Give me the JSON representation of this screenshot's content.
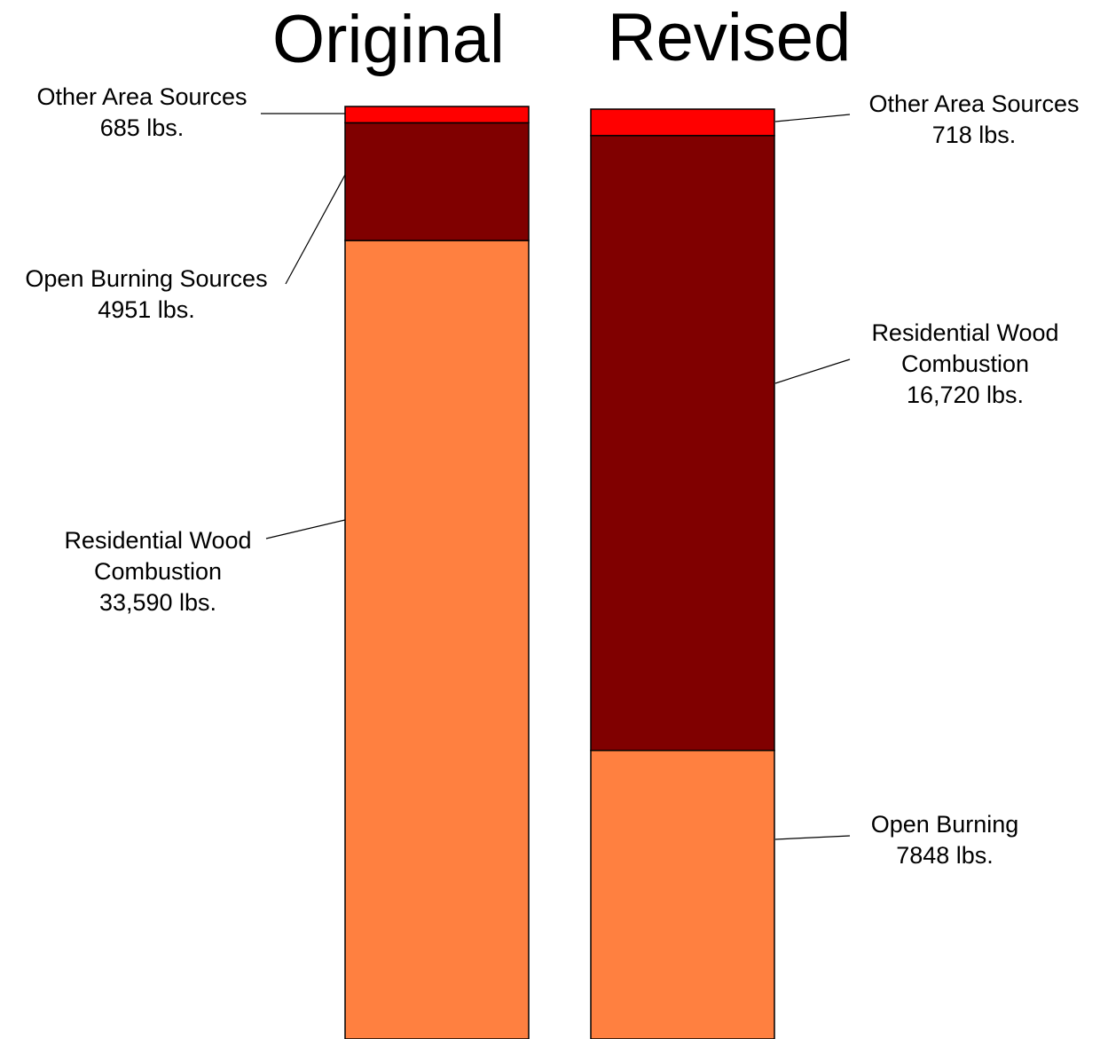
{
  "chart_data": {
    "type": "bar",
    "stacked": true,
    "categories": [
      "Original",
      "Revised"
    ],
    "titles": [
      "Original",
      "Revised"
    ],
    "stacks": [
      {
        "category": "Original",
        "segments": [
          {
            "id": "residential",
            "value": 33590,
            "color": "#FF8040",
            "label_lines": [
              "Residential Wood",
              "Combustion",
              "33,590 lbs."
            ]
          },
          {
            "id": "open",
            "value": 4951,
            "color": "#800000",
            "label_lines": [
              "Open Burning Sources",
              "4951 lbs."
            ]
          },
          {
            "id": "other",
            "value": 685,
            "color": "#FF0000",
            "label_lines": [
              "Other Area Sources",
              "685 lbs."
            ]
          }
        ]
      },
      {
        "category": "Revised",
        "segments": [
          {
            "id": "open",
            "value": 7848,
            "color": "#FF8040",
            "label_lines": [
              "Open Burning",
              "7848 lbs."
            ]
          },
          {
            "id": "residential",
            "value": 16720,
            "color": "#800000",
            "label_lines": [
              "Residential Wood",
              "Combustion",
              "16,720 lbs."
            ]
          },
          {
            "id": "other",
            "value": 718,
            "color": "#FF0000",
            "label_lines": [
              "Other Area Sources",
              "718 lbs."
            ]
          }
        ]
      }
    ],
    "legend": "none",
    "grid": false
  }
}
